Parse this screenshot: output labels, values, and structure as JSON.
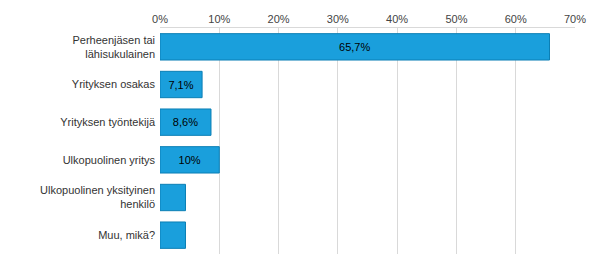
{
  "chart_data": {
    "type": "bar",
    "orientation": "horizontal",
    "categories": [
      "Perheenjäsen tai\nlähisukulainen",
      "Yrityksen osakas",
      "Yrityksen työntekijä",
      "Ulkopuolinen yritys",
      "Ulkopuolinen yksityinen\nhenkilö",
      "Muu, mikä?"
    ],
    "values": [
      65.7,
      7.1,
      8.6,
      10,
      4.3,
      4.3
    ],
    "value_labels": [
      "65,7%",
      "7,1%",
      "8,6%",
      "10%",
      null,
      null
    ],
    "data_labels": true,
    "color": "#1a9fdc",
    "xlim": [
      0,
      70
    ],
    "xticks": [
      {
        "value": 0,
        "label": "0%"
      },
      {
        "value": 10,
        "label": "10%"
      },
      {
        "value": 20,
        "label": "20%"
      },
      {
        "value": 30,
        "label": "30%"
      },
      {
        "value": 40,
        "label": "40%"
      },
      {
        "value": 50,
        "label": "50%"
      },
      {
        "value": 60,
        "label": "60%"
      },
      {
        "value": 70,
        "label": "70%"
      }
    ],
    "grid": true
  }
}
